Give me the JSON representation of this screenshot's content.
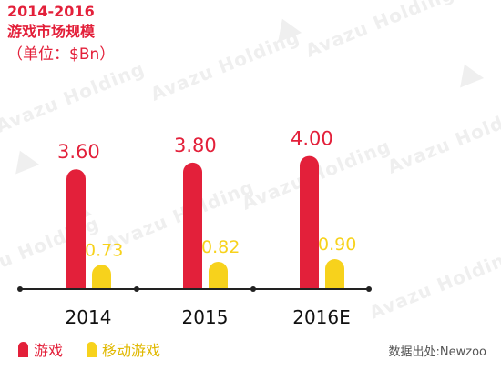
{
  "header": {
    "title_line1": "2014-2016",
    "title_line2": "游戏市场规模",
    "unit": "（单位：$Bn）"
  },
  "watermark": {
    "text": "Avazu Holding"
  },
  "source": "数据出处:Newzoo",
  "colors": {
    "red": "#e3203a",
    "yellow": "#f7d21c",
    "axis": "#222222"
  },
  "chart_data": {
    "type": "bar",
    "categories": [
      "2014",
      "2015",
      "2016E"
    ],
    "series": [
      {
        "name": "游戏",
        "values": [
          3.6,
          3.8,
          4.0
        ],
        "labels": [
          "3.60",
          "3.80",
          "4.00"
        ],
        "color": "#e3203a"
      },
      {
        "name": "移动游戏",
        "values": [
          0.73,
          0.82,
          0.9
        ],
        "labels": [
          "0.73",
          "0.82",
          "0.90"
        ],
        "color": "#f7d21c"
      }
    ],
    "title": "2014-2016 游戏市场规模",
    "ylabel": "（单位：$Bn）",
    "ylim": [
      0,
      4.5
    ],
    "grid": false,
    "legend_position": "bottom-left"
  }
}
